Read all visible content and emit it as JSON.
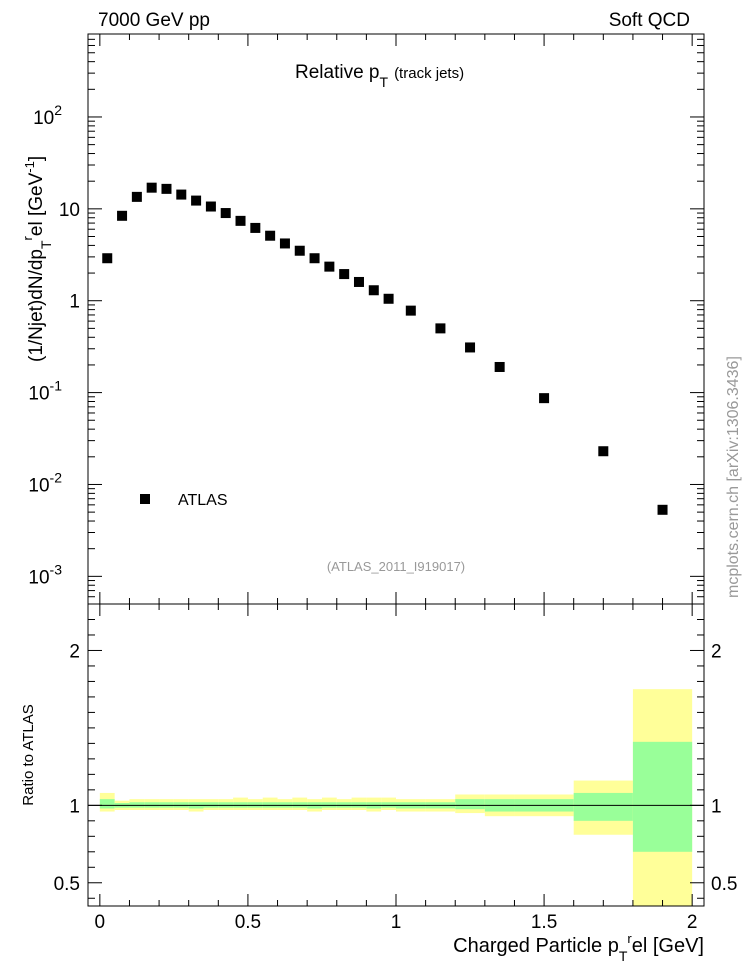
{
  "header": {
    "left": "7000 GeV pp",
    "right": "Soft QCD"
  },
  "chart_data": [
    {
      "type": "scatter",
      "title": "Relative p",
      "title_sub": "T",
      "title_suffix": "(track jets)",
      "ylabel": "(1/Njet)dN/dp",
      "ylabel_sub": "T",
      "ylabel_sup": "r",
      "ylabel_suffix": "el [GeV",
      "ylabel_unit_sup": "-1",
      "ylabel_close": "]",
      "yscale": "log",
      "xlim": [
        -0.04,
        2.04
      ],
      "ylim": [
        0.0005,
        800
      ],
      "y_ticks": [
        {
          "value": 0.001,
          "base": "10",
          "exp": "-3"
        },
        {
          "value": 0.01,
          "base": "10",
          "exp": "-2"
        },
        {
          "value": 0.1,
          "base": "10",
          "exp": "-1"
        },
        {
          "value": 1,
          "base": "1",
          "exp": ""
        },
        {
          "value": 10,
          "base": "10",
          "exp": ""
        },
        {
          "value": 100,
          "base": "10",
          "exp": "2"
        }
      ],
      "legend": {
        "label": "ATLAS",
        "placement": "bottom-left"
      },
      "watermark": "(ATLAS_2011_I919017)",
      "side_label": "mcplots.cern.ch [arXiv:1306.3436]",
      "series": [
        {
          "name": "ATLAS",
          "color": "#000000",
          "x": [
            0.025,
            0.075,
            0.125,
            0.175,
            0.225,
            0.275,
            0.325,
            0.375,
            0.425,
            0.475,
            0.525,
            0.575,
            0.625,
            0.675,
            0.725,
            0.775,
            0.825,
            0.875,
            0.925,
            0.975,
            1.05,
            1.15,
            1.25,
            1.35,
            1.5,
            1.7,
            1.9
          ],
          "y": [
            2.9,
            8.4,
            13.5,
            17.0,
            16.5,
            14.3,
            12.3,
            10.6,
            9.0,
            7.4,
            6.2,
            5.1,
            4.2,
            3.5,
            2.9,
            2.35,
            1.95,
            1.6,
            1.3,
            1.05,
            0.78,
            0.5,
            0.31,
            0.19,
            0.087,
            0.023,
            0.0053
          ]
        }
      ]
    },
    {
      "type": "area",
      "ylabel": "Ratio to ATLAS",
      "xlabel": "Charged Particle p",
      "xlabel_sub": "T",
      "xlabel_sup": "r",
      "xlabel_suffix": "el [GeV]",
      "xlim": [
        -0.04,
        2.04
      ],
      "ylim": [
        0.35,
        2.3
      ],
      "x_ticks": [
        {
          "value": 0,
          "label": "0"
        },
        {
          "value": 0.5,
          "label": "0.5"
        },
        {
          "value": 1,
          "label": "1"
        },
        {
          "value": 1.5,
          "label": "1.5"
        },
        {
          "value": 2,
          "label": "2"
        }
      ],
      "y_ticks": [
        {
          "value": 0.5,
          "label": "0.5"
        },
        {
          "value": 1,
          "label": "1"
        },
        {
          "value": 2,
          "label": "2"
        }
      ],
      "reference_line": 1,
      "bands": {
        "outer_color": "#ffff99",
        "inner_color": "#99ff99",
        "bins": [
          {
            "x0": 0.0,
            "x1": 0.05,
            "outer": [
              0.96,
              1.08
            ],
            "inner": [
              0.98,
              1.04
            ]
          },
          {
            "x0": 0.05,
            "x1": 0.1,
            "outer": [
              0.97,
              1.03
            ],
            "inner": [
              0.985,
              1.015
            ]
          },
          {
            "x0": 0.1,
            "x1": 0.15,
            "outer": [
              0.97,
              1.04
            ],
            "inner": [
              0.985,
              1.02
            ]
          },
          {
            "x0": 0.15,
            "x1": 0.2,
            "outer": [
              0.97,
              1.04
            ],
            "inner": [
              0.985,
              1.02
            ]
          },
          {
            "x0": 0.2,
            "x1": 0.25,
            "outer": [
              0.97,
              1.04
            ],
            "inner": [
              0.985,
              1.02
            ]
          },
          {
            "x0": 0.25,
            "x1": 0.3,
            "outer": [
              0.97,
              1.04
            ],
            "inner": [
              0.985,
              1.02
            ]
          },
          {
            "x0": 0.3,
            "x1": 0.35,
            "outer": [
              0.96,
              1.04
            ],
            "inner": [
              0.98,
              1.02
            ]
          },
          {
            "x0": 0.35,
            "x1": 0.4,
            "outer": [
              0.97,
              1.04
            ],
            "inner": [
              0.985,
              1.02
            ]
          },
          {
            "x0": 0.4,
            "x1": 0.45,
            "outer": [
              0.97,
              1.04
            ],
            "inner": [
              0.985,
              1.02
            ]
          },
          {
            "x0": 0.45,
            "x1": 0.5,
            "outer": [
              0.97,
              1.05
            ],
            "inner": [
              0.985,
              1.02
            ]
          },
          {
            "x0": 0.5,
            "x1": 0.55,
            "outer": [
              0.97,
              1.04
            ],
            "inner": [
              0.985,
              1.02
            ]
          },
          {
            "x0": 0.55,
            "x1": 0.6,
            "outer": [
              0.97,
              1.05
            ],
            "inner": [
              0.985,
              1.02
            ]
          },
          {
            "x0": 0.6,
            "x1": 0.65,
            "outer": [
              0.97,
              1.04
            ],
            "inner": [
              0.985,
              1.02
            ]
          },
          {
            "x0": 0.65,
            "x1": 0.7,
            "outer": [
              0.97,
              1.05
            ],
            "inner": [
              0.985,
              1.02
            ]
          },
          {
            "x0": 0.7,
            "x1": 0.75,
            "outer": [
              0.96,
              1.04
            ],
            "inner": [
              0.98,
              1.02
            ]
          },
          {
            "x0": 0.75,
            "x1": 0.8,
            "outer": [
              0.97,
              1.05
            ],
            "inner": [
              0.985,
              1.02
            ]
          },
          {
            "x0": 0.8,
            "x1": 0.85,
            "outer": [
              0.97,
              1.04
            ],
            "inner": [
              0.985,
              1.02
            ]
          },
          {
            "x0": 0.85,
            "x1": 0.9,
            "outer": [
              0.97,
              1.05
            ],
            "inner": [
              0.985,
              1.02
            ]
          },
          {
            "x0": 0.9,
            "x1": 0.95,
            "outer": [
              0.96,
              1.05
            ],
            "inner": [
              0.98,
              1.02
            ]
          },
          {
            "x0": 0.95,
            "x1": 1.0,
            "outer": [
              0.97,
              1.05
            ],
            "inner": [
              0.985,
              1.02
            ]
          },
          {
            "x0": 1.0,
            "x1": 1.1,
            "outer": [
              0.96,
              1.04
            ],
            "inner": [
              0.98,
              1.02
            ]
          },
          {
            "x0": 1.1,
            "x1": 1.2,
            "outer": [
              0.96,
              1.04
            ],
            "inner": [
              0.98,
              1.02
            ]
          },
          {
            "x0": 1.2,
            "x1": 1.3,
            "outer": [
              0.95,
              1.07
            ],
            "inner": [
              0.975,
              1.04
            ]
          },
          {
            "x0": 1.3,
            "x1": 1.4,
            "outer": [
              0.93,
              1.07
            ],
            "inner": [
              0.96,
              1.04
            ]
          },
          {
            "x0": 1.4,
            "x1": 1.6,
            "outer": [
              0.93,
              1.07
            ],
            "inner": [
              0.96,
              1.04
            ]
          },
          {
            "x0": 1.6,
            "x1": 1.8,
            "outer": [
              0.81,
              1.16
            ],
            "inner": [
              0.9,
              1.08
            ]
          },
          {
            "x0": 1.8,
            "x1": 2.0,
            "outer": [
              0.35,
              1.75
            ],
            "inner": [
              0.7,
              1.41
            ]
          }
        ]
      }
    }
  ]
}
